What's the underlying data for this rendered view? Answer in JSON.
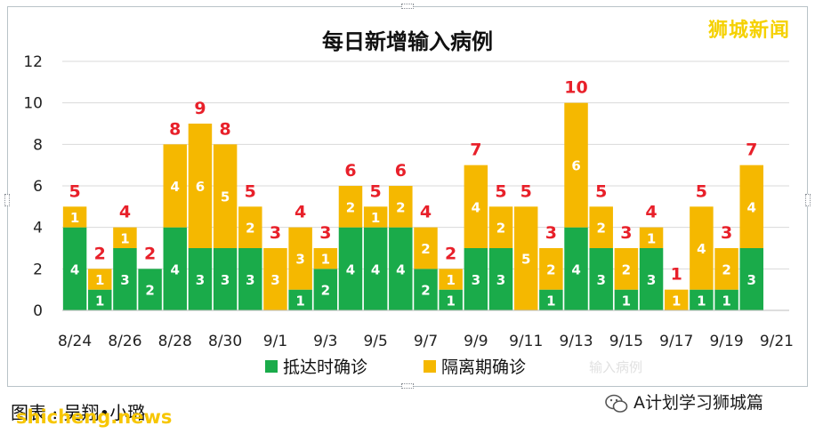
{
  "brand": "狮城新闻",
  "caption": "图表 :  吴翔•小璐",
  "watermark_site": "shicheng.news",
  "wechat_account": "A计划学习狮城篇",
  "ghost_text": "输入病例",
  "colors": {
    "arrival": "#1aab4a",
    "quarantine": "#f5b800",
    "total_label": "#e8202a",
    "grid": "#d9d9d9",
    "axis_text": "#222222",
    "segment_text": "#ffffff"
  },
  "chart_data": {
    "type": "bar",
    "stacked": true,
    "title": "每日新增输入病例",
    "xlabel": "",
    "ylabel": "",
    "ylim": [
      0,
      12
    ],
    "yticks": [
      0,
      2,
      4,
      6,
      8,
      10,
      12
    ],
    "grid": true,
    "legend_position": "bottom",
    "categories": [
      "8/24",
      "8/25",
      "8/26",
      "8/27",
      "8/28",
      "8/29",
      "8/30",
      "8/31",
      "9/1",
      "9/2",
      "9/3",
      "9/4",
      "9/5",
      "9/6",
      "9/7",
      "9/8",
      "9/9",
      "9/10",
      "9/11",
      "9/12",
      "9/13",
      "9/14",
      "9/15",
      "9/16",
      "9/17",
      "9/18",
      "9/19",
      "9/20",
      "9/21"
    ],
    "xtick_labels": [
      "8/24",
      "8/26",
      "8/28",
      "8/30",
      "9/1",
      "9/3",
      "9/5",
      "9/7",
      "9/9",
      "9/11",
      "9/13",
      "9/15",
      "9/17",
      "9/19",
      "9/21"
    ],
    "series": [
      {
        "name": "抵达时确诊",
        "values": [
          4,
          1,
          3,
          2,
          4,
          3,
          3,
          3,
          0,
          1,
          2,
          4,
          4,
          4,
          2,
          1,
          3,
          3,
          0,
          1,
          4,
          3,
          1,
          3,
          0,
          1,
          1,
          3,
          0
        ]
      },
      {
        "name": "隔离期确诊",
        "values": [
          1,
          1,
          1,
          0,
          4,
          6,
          5,
          2,
          3,
          3,
          1,
          2,
          1,
          2,
          2,
          1,
          4,
          2,
          5,
          2,
          6,
          2,
          2,
          1,
          1,
          4,
          2,
          4,
          0
        ]
      }
    ],
    "totals": [
      5,
      2,
      4,
      2,
      8,
      9,
      8,
      5,
      3,
      4,
      3,
      6,
      5,
      6,
      4,
      2,
      7,
      5,
      5,
      3,
      10,
      5,
      3,
      4,
      1,
      5,
      3,
      7,
      null
    ]
  }
}
